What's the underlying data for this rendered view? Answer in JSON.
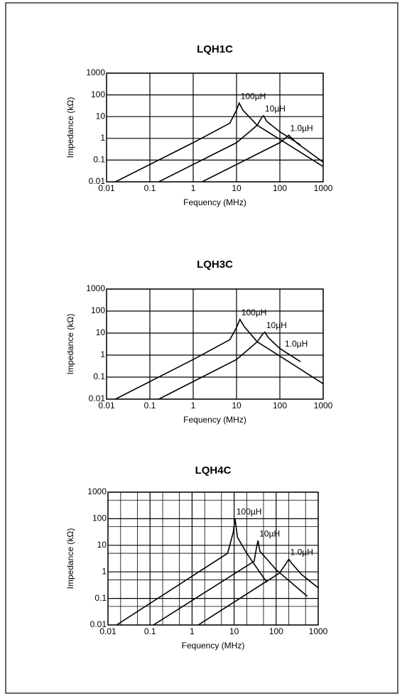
{
  "chart_data": [
    {
      "type": "line",
      "title": "LQH1C",
      "xlabel": "Fequency (MHz)",
      "ylabel": "Impedance (kΩ)",
      "xscale": "log",
      "yscale": "log",
      "grid": true,
      "xlim": [
        0.01,
        1000
      ],
      "ylim": [
        0.01,
        1000
      ],
      "xticks": [
        0.01,
        0.1,
        1,
        10,
        100,
        1000
      ],
      "yticks": [
        0.01,
        0.1,
        1,
        10,
        100,
        1000
      ],
      "series": [
        {
          "name": "100µH",
          "color": "#000000",
          "x": [
            0.016,
            1,
            7,
            10,
            11.5,
            14,
            30,
            100,
            1000
          ],
          "values": [
            0.01,
            0.63,
            5,
            20,
            42,
            20,
            4,
            0.9,
            0.05
          ]
        },
        {
          "name": "10µH",
          "color": "#000000",
          "x": [
            0.16,
            10,
            30,
            38,
            42,
            50,
            100,
            300
          ],
          "values": [
            0.01,
            0.63,
            4,
            9,
            11,
            6,
            2,
            0.5
          ]
        },
        {
          "name": "1.0µH",
          "color": "#000000",
          "x": [
            1.6,
            100,
            140,
            160,
            180,
            250,
            1000
          ],
          "values": [
            0.01,
            0.63,
            1.1,
            1.4,
            1.1,
            0.6,
            0.08
          ]
        }
      ]
    },
    {
      "type": "line",
      "title": "LQH3C",
      "xlabel": "Fequency (MHz)",
      "ylabel": "Impedance (kΩ)",
      "xscale": "log",
      "yscale": "log",
      "grid": true,
      "xlim": [
        0.01,
        1000
      ],
      "ylim": [
        0.01,
        1000
      ],
      "xticks": [
        0.01,
        0.1,
        1,
        10,
        100,
        1000
      ],
      "yticks": [
        0.01,
        0.1,
        1,
        10,
        100,
        1000
      ],
      "series": [
        {
          "name": "100µH",
          "color": "#000000",
          "x": [
            0.016,
            1,
            7,
            10,
            12,
            15,
            30,
            100,
            1000
          ],
          "values": [
            0.01,
            0.63,
            5,
            18,
            42,
            20,
            4,
            0.9,
            0.05
          ]
        },
        {
          "name": "10µH",
          "color": "#000000",
          "x": [
            0.16,
            10,
            30,
            40,
            45,
            55,
            100,
            300
          ],
          "values": [
            0.01,
            0.63,
            4,
            9,
            11,
            6,
            2,
            0.5
          ]
        }
      ],
      "annotations": [
        "1.0µH"
      ]
    },
    {
      "type": "line",
      "title": "LQH4C",
      "xlabel": "Fequency (MHz)",
      "ylabel": "Impedance (kΩ)",
      "xscale": "log",
      "yscale": "log",
      "grid": true,
      "xlim": [
        0.01,
        1000
      ],
      "ylim": [
        0.01,
        1000
      ],
      "xticks": [
        0.01,
        0.1,
        1,
        10,
        100,
        1000
      ],
      "yticks": [
        0.01,
        0.1,
        1,
        10,
        100,
        1000
      ],
      "xminorticks": [
        0.02,
        0.05,
        0.2,
        0.5,
        2,
        5,
        20,
        50,
        200,
        500
      ],
      "yminorticks": [
        0.05,
        0.5,
        5,
        50,
        500
      ],
      "series": [
        {
          "name": "100µH",
          "color": "#000000",
          "x": [
            0.016,
            7,
            9.5,
            10.5,
            12,
            20,
            60
          ],
          "values": [
            0.01,
            5,
            30,
            100,
            20,
            5,
            0.4
          ]
        },
        {
          "name": "10µH",
          "color": "#000000",
          "x": [
            0.12,
            30,
            34,
            37,
            41,
            100,
            550
          ],
          "values": [
            0.01,
            2.5,
            8,
            15,
            6,
            1.2,
            0.12
          ]
        },
        {
          "name": "1.0µH",
          "color": "#000000",
          "x": [
            1.4,
            120,
            170,
            200,
            240,
            400,
            1000
          ],
          "values": [
            0.01,
            0.9,
            2,
            3,
            2,
            0.8,
            0.25
          ]
        }
      ]
    }
  ]
}
